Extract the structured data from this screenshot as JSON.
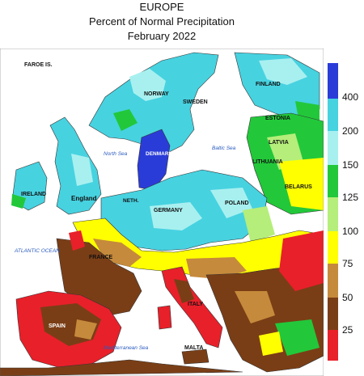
{
  "title": {
    "region": "EUROPE",
    "metric": "Percent of Normal Precipitation",
    "period": "February 2022"
  },
  "legend": {
    "colors": {
      "over_400": "#2a3cd8",
      "200_400": "#47d2e0",
      "150_200": "#a8f0f0",
      "125_150": "#22c83a",
      "100_125": "#b5ee7a",
      "75_100": "#ffff00",
      "50_75": "#c68a3c",
      "25_50": "#7a3e16",
      "0_25": "#e8202a"
    },
    "labels": [
      "400",
      "200",
      "150",
      "125",
      "100",
      "75",
      "50",
      "25"
    ]
  },
  "places": {
    "faroe": "FAROE IS.",
    "norway": "NORWAY",
    "sweden": "SWEDEN",
    "finland": "FINLAND",
    "estonia": "ESTONIA",
    "latvia": "LATVIA",
    "lithuania": "LITHUANIA",
    "belarus": "BELARUS",
    "denmark": "DENMARK",
    "ireland": "IRELAND",
    "england": "England",
    "netherlands": "NETH.",
    "germany": "GERMANY",
    "poland": "POLAND",
    "france": "FRANCE",
    "spain": "SPAIN",
    "italy": "ITALY",
    "malta": "MALTA"
  },
  "seas": {
    "north_sea": "North Sea",
    "baltic_sea": "Baltic Sea",
    "atlantic": "ATLANTIC OCEAN",
    "mediterranean": "Mediterranean Sea"
  }
}
